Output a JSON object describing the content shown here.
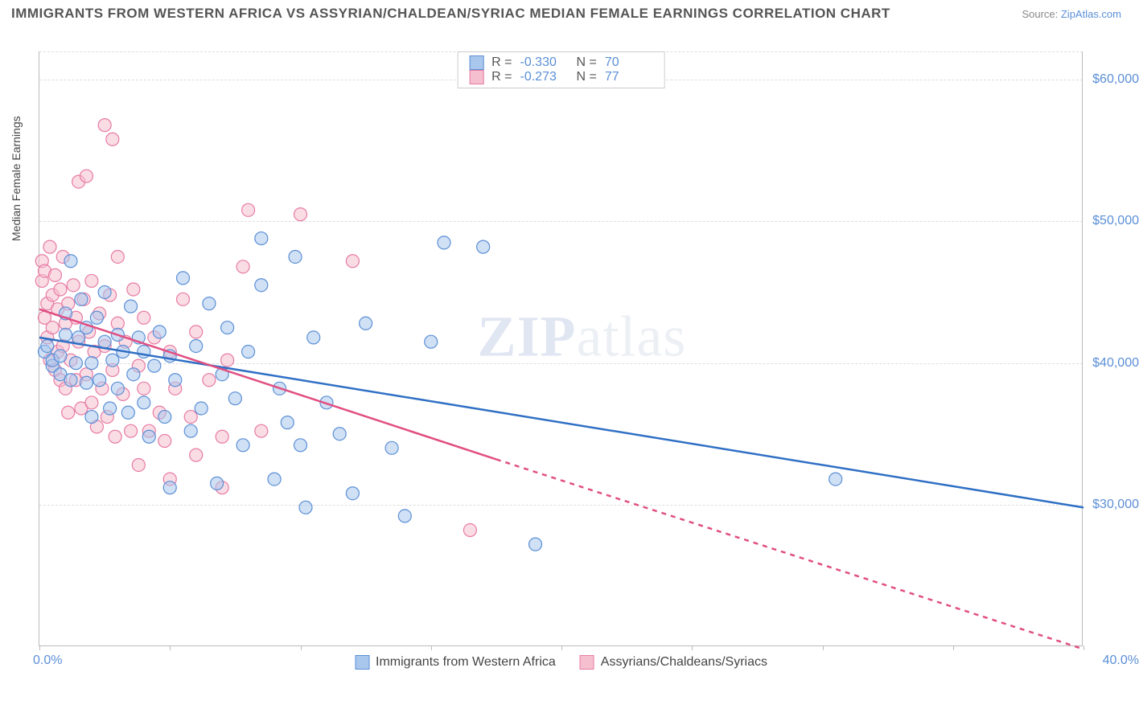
{
  "title": "IMMIGRANTS FROM WESTERN AFRICA VS ASSYRIAN/CHALDEAN/SYRIAC MEDIAN FEMALE EARNINGS CORRELATION CHART",
  "source_prefix": "Source: ",
  "source_link": "ZipAtlas.com",
  "watermark": {
    "zip": "ZIP",
    "atlas": "atlas"
  },
  "ylabel": "Median Female Earnings",
  "chart": {
    "type": "scatter",
    "background_color": "#ffffff",
    "grid_color": "#dddddd",
    "border_color": "#bbbbbb",
    "xlim": [
      0,
      40
    ],
    "ylim": [
      20000,
      62000
    ],
    "xtick_positions": [
      0,
      5,
      10,
      15,
      20,
      25,
      30,
      35,
      40
    ],
    "xtick_labels_shown": {
      "0": "0.0%",
      "40": "40.0%"
    },
    "ytick_positions": [
      30000,
      40000,
      50000,
      60000
    ],
    "ytick_labels": {
      "30000": "$30,000",
      "40000": "$40,000",
      "50000": "$50,000",
      "60000": "$60,000"
    },
    "marker_radius": 8,
    "marker_opacity": 0.55,
    "line_width": 2.5,
    "label_fontsize": 14,
    "tick_fontsize": 16
  },
  "series": {
    "blue": {
      "label": "Immigrants from Western Africa",
      "fill": "#a9c7ec",
      "stroke": "#5b8fd6",
      "line_color": "#2f6fc4",
      "R": "-0.330",
      "N": "70",
      "trend": {
        "x1": 0,
        "y1": 41800,
        "x2": 40,
        "y2": 29800
      },
      "points": [
        [
          0.2,
          40800
        ],
        [
          0.3,
          41200
        ],
        [
          0.5,
          39800
        ],
        [
          0.5,
          40200
        ],
        [
          0.8,
          40500
        ],
        [
          0.8,
          39200
        ],
        [
          1.0,
          42000
        ],
        [
          1.0,
          43500
        ],
        [
          1.2,
          38800
        ],
        [
          1.2,
          47200
        ],
        [
          1.4,
          40000
        ],
        [
          1.5,
          41800
        ],
        [
          1.6,
          44500
        ],
        [
          1.8,
          38600
        ],
        [
          1.8,
          42500
        ],
        [
          2.0,
          40000
        ],
        [
          2.0,
          36200
        ],
        [
          2.2,
          43200
        ],
        [
          2.3,
          38800
        ],
        [
          2.5,
          41500
        ],
        [
          2.5,
          45000
        ],
        [
          2.7,
          36800
        ],
        [
          2.8,
          40200
        ],
        [
          3.0,
          42000
        ],
        [
          3.0,
          38200
        ],
        [
          3.2,
          40800
        ],
        [
          3.4,
          36500
        ],
        [
          3.5,
          44000
        ],
        [
          3.6,
          39200
        ],
        [
          3.8,
          41800
        ],
        [
          4.0,
          37200
        ],
        [
          4.0,
          40800
        ],
        [
          4.2,
          34800
        ],
        [
          4.4,
          39800
        ],
        [
          4.6,
          42200
        ],
        [
          4.8,
          36200
        ],
        [
          5.0,
          40500
        ],
        [
          5.0,
          31200
        ],
        [
          5.2,
          38800
        ],
        [
          5.5,
          46000
        ],
        [
          5.8,
          35200
        ],
        [
          6.0,
          41200
        ],
        [
          6.2,
          36800
        ],
        [
          6.5,
          44200
        ],
        [
          6.8,
          31500
        ],
        [
          7.0,
          39200
        ],
        [
          7.2,
          42500
        ],
        [
          7.5,
          37500
        ],
        [
          7.8,
          34200
        ],
        [
          8.0,
          40800
        ],
        [
          8.5,
          45500
        ],
        [
          8.5,
          48800
        ],
        [
          9.0,
          31800
        ],
        [
          9.2,
          38200
        ],
        [
          9.5,
          35800
        ],
        [
          9.8,
          47500
        ],
        [
          10.0,
          34200
        ],
        [
          10.2,
          29800
        ],
        [
          10.5,
          41800
        ],
        [
          11.0,
          37200
        ],
        [
          11.5,
          35000
        ],
        [
          12.0,
          30800
        ],
        [
          12.5,
          42800
        ],
        [
          13.5,
          34000
        ],
        [
          14.0,
          29200
        ],
        [
          15.0,
          41500
        ],
        [
          15.5,
          48500
        ],
        [
          17.0,
          48200
        ],
        [
          19.0,
          27200
        ],
        [
          30.5,
          31800
        ]
      ]
    },
    "pink": {
      "label": "Assyrians/Chaldeans/Syriacs",
      "fill": "#f5bfcf",
      "stroke": "#e77ba3",
      "line_color": "#e14f82",
      "R": "-0.273",
      "N": "77",
      "trend_solid": {
        "x1": 0,
        "y1": 43800,
        "x2": 17.5,
        "y2": 33200
      },
      "trend_dashed": {
        "x1": 17.5,
        "y1": 33200,
        "x2": 40,
        "y2": 19800
      },
      "points": [
        [
          0.1,
          47200
        ],
        [
          0.1,
          45800
        ],
        [
          0.2,
          43200
        ],
        [
          0.2,
          46500
        ],
        [
          0.3,
          44200
        ],
        [
          0.3,
          41800
        ],
        [
          0.4,
          48200
        ],
        [
          0.4,
          40200
        ],
        [
          0.5,
          44800
        ],
        [
          0.5,
          42500
        ],
        [
          0.6,
          46200
        ],
        [
          0.6,
          39500
        ],
        [
          0.7,
          40800
        ],
        [
          0.7,
          43800
        ],
        [
          0.8,
          38800
        ],
        [
          0.8,
          45200
        ],
        [
          0.9,
          41200
        ],
        [
          0.9,
          47500
        ],
        [
          1.0,
          38200
        ],
        [
          1.0,
          42800
        ],
        [
          1.1,
          44200
        ],
        [
          1.1,
          36500
        ],
        [
          1.2,
          40200
        ],
        [
          1.3,
          45500
        ],
        [
          1.4,
          38800
        ],
        [
          1.4,
          43200
        ],
        [
          1.5,
          52800
        ],
        [
          1.5,
          41500
        ],
        [
          1.6,
          36800
        ],
        [
          1.7,
          44500
        ],
        [
          1.8,
          53200
        ],
        [
          1.8,
          39200
        ],
        [
          1.9,
          42200
        ],
        [
          2.0,
          37200
        ],
        [
          2.0,
          45800
        ],
        [
          2.1,
          40800
        ],
        [
          2.2,
          35500
        ],
        [
          2.3,
          43500
        ],
        [
          2.4,
          38200
        ],
        [
          2.5,
          56800
        ],
        [
          2.5,
          41200
        ],
        [
          2.6,
          36200
        ],
        [
          2.7,
          44800
        ],
        [
          2.8,
          39500
        ],
        [
          2.8,
          55800
        ],
        [
          2.9,
          34800
        ],
        [
          3.0,
          42800
        ],
        [
          3.0,
          47500
        ],
        [
          3.2,
          37800
        ],
        [
          3.3,
          41500
        ],
        [
          3.5,
          35200
        ],
        [
          3.6,
          45200
        ],
        [
          3.8,
          39800
        ],
        [
          3.8,
          32800
        ],
        [
          4.0,
          38200
        ],
        [
          4.0,
          43200
        ],
        [
          4.2,
          35200
        ],
        [
          4.4,
          41800
        ],
        [
          4.6,
          36500
        ],
        [
          4.8,
          34500
        ],
        [
          5.0,
          40800
        ],
        [
          5.0,
          31800
        ],
        [
          5.2,
          38200
        ],
        [
          5.5,
          44500
        ],
        [
          5.8,
          36200
        ],
        [
          6.0,
          33500
        ],
        [
          6.0,
          42200
        ],
        [
          6.5,
          38800
        ],
        [
          7.0,
          34800
        ],
        [
          7.0,
          31200
        ],
        [
          7.2,
          40200
        ],
        [
          7.8,
          46800
        ],
        [
          8.0,
          50800
        ],
        [
          8.5,
          35200
        ],
        [
          10.0,
          50500
        ],
        [
          12.0,
          47200
        ],
        [
          16.5,
          28200
        ]
      ]
    }
  },
  "legend_stat_labels": {
    "R": "R =",
    "N": "N ="
  }
}
